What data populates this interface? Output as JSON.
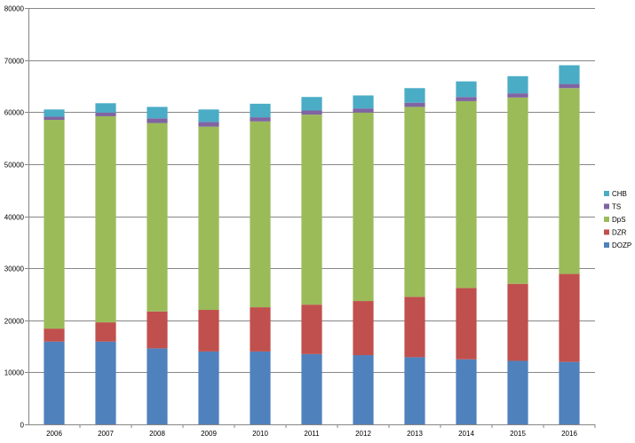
{
  "chart_data": {
    "type": "bar",
    "stacked": true,
    "categories": [
      "2006",
      "2007",
      "2008",
      "2009",
      "2010",
      "2011",
      "2012",
      "2013",
      "2014",
      "2015",
      "2016"
    ],
    "series": [
      {
        "name": "DOZP",
        "color": "#4F81BD",
        "values": [
          15900,
          15900,
          14600,
          14000,
          14000,
          13500,
          13300,
          12900,
          12500,
          12200,
          12000
        ]
      },
      {
        "name": "DZR",
        "color": "#C0504D",
        "values": [
          2500,
          3700,
          7100,
          8000,
          8500,
          9500,
          10400,
          11600,
          13700,
          14800,
          16900
        ]
      },
      {
        "name": "DpS",
        "color": "#9BBB59",
        "values": [
          40100,
          39600,
          36200,
          35200,
          35700,
          36500,
          36200,
          36500,
          35900,
          35800,
          35700
        ]
      },
      {
        "name": "TS",
        "color": "#8064A2",
        "values": [
          600,
          700,
          900,
          900,
          800,
          800,
          800,
          800,
          800,
          800,
          800
        ]
      },
      {
        "name": "CHB",
        "color": "#4BACC6",
        "values": [
          1400,
          1800,
          2200,
          2400,
          2600,
          2600,
          2500,
          2800,
          3000,
          3300,
          3600
        ]
      }
    ],
    "legend_order": [
      "CHB",
      "TS",
      "DpS",
      "DZR",
      "DOZP"
    ],
    "ylim": [
      0,
      80000
    ],
    "yticks": [
      "0",
      "10000",
      "20000",
      "30000",
      "40000",
      "50000",
      "60000",
      "70000",
      "80000"
    ],
    "xlabel": "",
    "ylabel": "",
    "title": "",
    "grid": true,
    "legend_position": "right"
  }
}
